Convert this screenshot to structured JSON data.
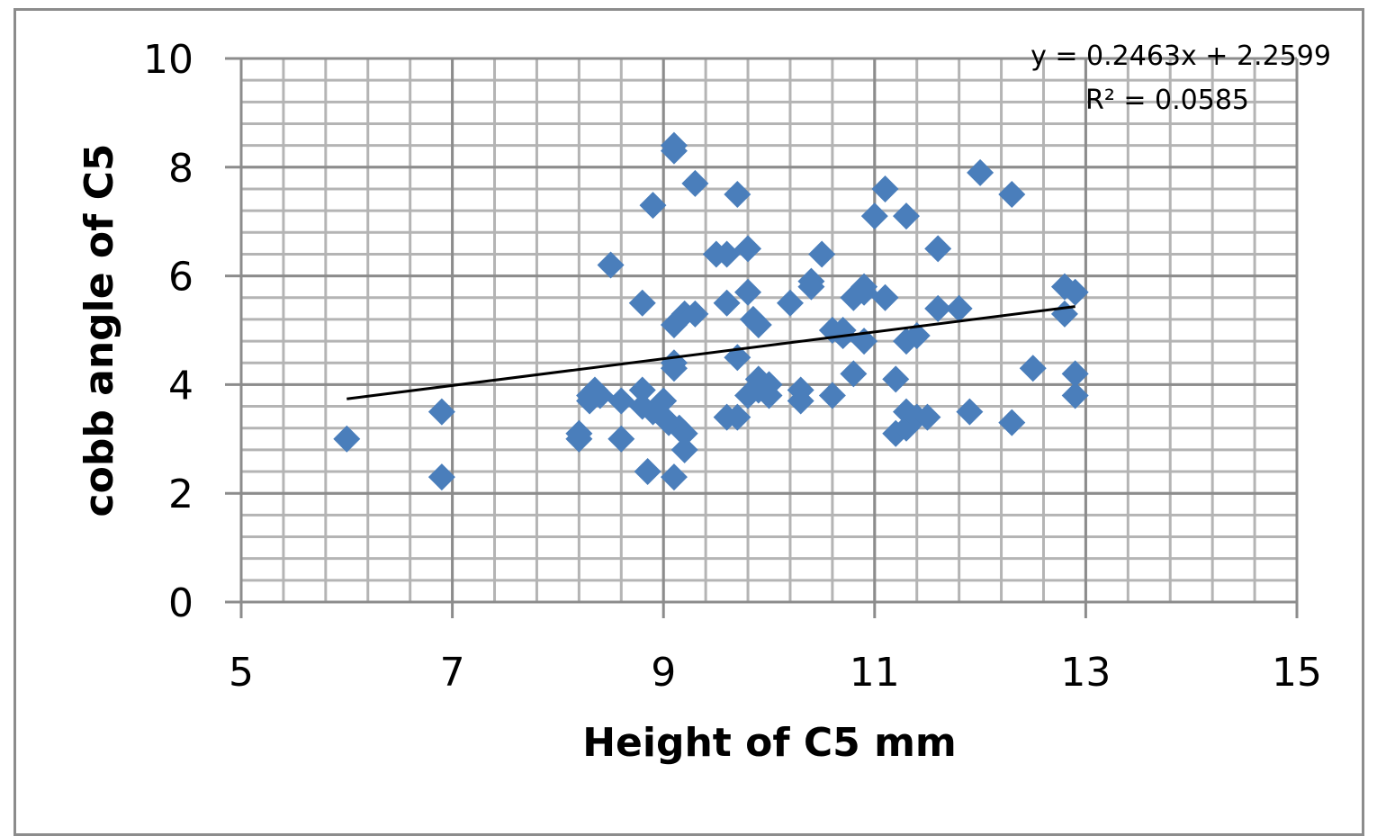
{
  "chart_data": {
    "type": "scatter",
    "title": "",
    "xlabel": "Height of C5 mm",
    "ylabel": "cobb angle of C5",
    "xlim": [
      5,
      15
    ],
    "ylim": [
      0,
      10
    ],
    "x_ticks": [
      "5",
      "7",
      "9",
      "11",
      "13",
      "15"
    ],
    "y_ticks": [
      "0",
      "2",
      "4",
      "6",
      "8",
      "10"
    ],
    "grid": {
      "major": true,
      "minor": true,
      "x_minor_step": 0.4,
      "y_minor_step": 0.4
    },
    "legend": null,
    "marker": {
      "shape": "diamond",
      "color": "#4a7ebb"
    },
    "trendline": {
      "type": "linear",
      "slope": 0.2463,
      "intercept": 2.2599,
      "x_range": [
        6.0,
        12.9
      ],
      "equation_label": "y = 0.2463x + 2.2599",
      "r2_label": "R² = 0.0585",
      "color": "#000000"
    },
    "points": [
      [
        6.0,
        3.0
      ],
      [
        6.9,
        3.5
      ],
      [
        6.9,
        2.3
      ],
      [
        8.2,
        3.1
      ],
      [
        8.2,
        3.0
      ],
      [
        8.3,
        3.8
      ],
      [
        8.3,
        3.7
      ],
      [
        8.35,
        3.9
      ],
      [
        8.4,
        3.8
      ],
      [
        8.5,
        6.2
      ],
      [
        8.6,
        3.7
      ],
      [
        8.6,
        3.0
      ],
      [
        8.8,
        5.5
      ],
      [
        8.8,
        3.9
      ],
      [
        8.8,
        3.6
      ],
      [
        8.85,
        2.4
      ],
      [
        8.9,
        7.3
      ],
      [
        8.9,
        3.5
      ],
      [
        9.0,
        3.7
      ],
      [
        9.0,
        3.4
      ],
      [
        9.05,
        3.3
      ],
      [
        9.1,
        8.4
      ],
      [
        9.1,
        8.3
      ],
      [
        9.1,
        5.1
      ],
      [
        9.1,
        4.4
      ],
      [
        9.1,
        4.3
      ],
      [
        9.1,
        2.3
      ],
      [
        9.15,
        3.2
      ],
      [
        9.2,
        5.3
      ],
      [
        9.2,
        3.1
      ],
      [
        9.2,
        2.8
      ],
      [
        9.3,
        7.7
      ],
      [
        9.3,
        5.3
      ],
      [
        9.5,
        6.4
      ],
      [
        9.6,
        6.4
      ],
      [
        9.6,
        5.5
      ],
      [
        9.6,
        3.4
      ],
      [
        9.7,
        7.5
      ],
      [
        9.7,
        4.5
      ],
      [
        9.7,
        3.4
      ],
      [
        9.8,
        6.5
      ],
      [
        9.8,
        5.7
      ],
      [
        9.8,
        3.8
      ],
      [
        9.85,
        5.2
      ],
      [
        9.9,
        5.1
      ],
      [
        9.9,
        4.1
      ],
      [
        9.9,
        3.9
      ],
      [
        10.0,
        4.0
      ],
      [
        10.0,
        3.8
      ],
      [
        10.2,
        5.5
      ],
      [
        10.3,
        3.9
      ],
      [
        10.3,
        3.7
      ],
      [
        10.4,
        5.9
      ],
      [
        10.4,
        5.8
      ],
      [
        10.5,
        6.4
      ],
      [
        10.6,
        5.0
      ],
      [
        10.6,
        3.8
      ],
      [
        10.7,
        5.0
      ],
      [
        10.7,
        4.9
      ],
      [
        10.8,
        5.6
      ],
      [
        10.8,
        4.2
      ],
      [
        10.9,
        5.8
      ],
      [
        10.9,
        5.7
      ],
      [
        10.9,
        4.8
      ],
      [
        11.0,
        7.1
      ],
      [
        11.1,
        7.6
      ],
      [
        11.1,
        5.6
      ],
      [
        11.2,
        4.1
      ],
      [
        11.2,
        3.1
      ],
      [
        11.3,
        7.1
      ],
      [
        11.3,
        4.8
      ],
      [
        11.3,
        3.5
      ],
      [
        11.3,
        3.2
      ],
      [
        11.4,
        4.9
      ],
      [
        11.4,
        3.4
      ],
      [
        11.5,
        3.4
      ],
      [
        11.6,
        6.5
      ],
      [
        11.6,
        5.4
      ],
      [
        11.8,
        5.4
      ],
      [
        11.9,
        3.5
      ],
      [
        12.0,
        7.9
      ],
      [
        12.3,
        7.5
      ],
      [
        12.3,
        3.3
      ],
      [
        12.5,
        4.3
      ],
      [
        12.8,
        5.8
      ],
      [
        12.8,
        5.3
      ],
      [
        12.9,
        5.7
      ],
      [
        12.9,
        4.2
      ],
      [
        12.9,
        3.8
      ]
    ]
  }
}
